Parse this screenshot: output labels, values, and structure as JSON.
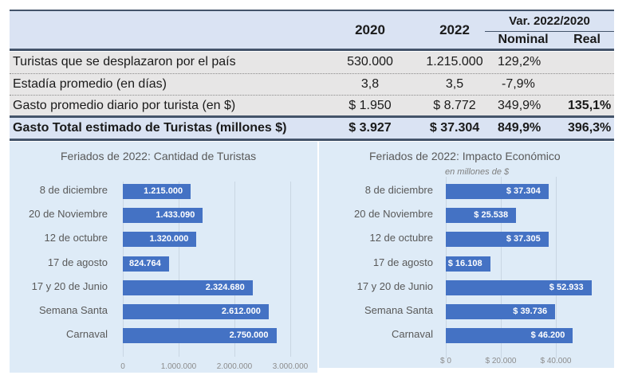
{
  "table": {
    "headers": {
      "col_2020": "2020",
      "col_2022": "2022",
      "var_group": "Var. 2022/2020",
      "nominal": "Nominal",
      "real": "Real"
    },
    "rows": [
      {
        "label": "Turistas que se desplazaron por el país",
        "v2020": "530.000",
        "v2022": "1.215.000",
        "nominal": "129,2%",
        "real": ""
      },
      {
        "label": "Estadía promedio (en días)",
        "v2020": "3,8",
        "v2022": "3,5",
        "nominal": "-7,9%",
        "real": ""
      },
      {
        "label": "Gasto promedio diario por turista (en $)",
        "v2020": "$ 1.950",
        "v2022": "$ 8.772",
        "nominal": "349,9%",
        "real": "135,1%"
      },
      {
        "label": "Gasto Total estimado de Turistas (millones $)",
        "v2020": "$ 3.927",
        "v2022": "$ 37.304",
        "nominal": "849,9%",
        "real": "396,3%"
      }
    ]
  },
  "chart_data": [
    {
      "type": "bar",
      "orientation": "horizontal",
      "title": "Feriados de 2022: Cantidad de Turistas",
      "subtitle": "",
      "categories": [
        "8 de diciembre",
        "20 de Noviembre",
        "12 de octubre",
        "17 de agosto",
        "17 y 20 de Junio",
        "Semana Santa",
        "Carnaval"
      ],
      "values": [
        1215000,
        1433090,
        1320000,
        824764,
        2324680,
        2612000,
        2750000
      ],
      "data_labels": [
        "1.215.000",
        "1.433.090",
        "1.320.000",
        "824.764",
        "2.324.680",
        "2.612.000",
        "2.750.000"
      ],
      "xlim": [
        0,
        3000000
      ],
      "xticks": [
        0,
        1000000,
        2000000,
        3000000
      ],
      "xtick_labels": [
        "0",
        "1.000.000",
        "2.000.000",
        "3.000.000"
      ],
      "xlabel": "",
      "ylabel": "",
      "grid": true,
      "bar_color": "#4472c4"
    },
    {
      "type": "bar",
      "orientation": "horizontal",
      "title": "Feriados de 2022: Impacto Económico",
      "subtitle": "en millones de $",
      "categories": [
        "8 de diciembre",
        "20 de Noviembre",
        "12 de octubre",
        "17 de agosto",
        "17 y 20 de Junio",
        "Semana Santa",
        "Carnaval"
      ],
      "values": [
        37304,
        25538,
        37305,
        16108,
        52933,
        39736,
        46200
      ],
      "data_labels": [
        "$ 37.304",
        "$ 25.538",
        "$ 37.305",
        "$ 16.108",
        "$ 52.933",
        "$ 39.736",
        "$ 46.200"
      ],
      "xlim": [
        0,
        60000
      ],
      "xticks": [
        0,
        20000,
        40000
      ],
      "xtick_labels": [
        "$ 0",
        "$ 20.000",
        "$ 40.000"
      ],
      "xlabel": "",
      "ylabel": "",
      "grid": true,
      "bar_color": "#4472c4"
    }
  ]
}
